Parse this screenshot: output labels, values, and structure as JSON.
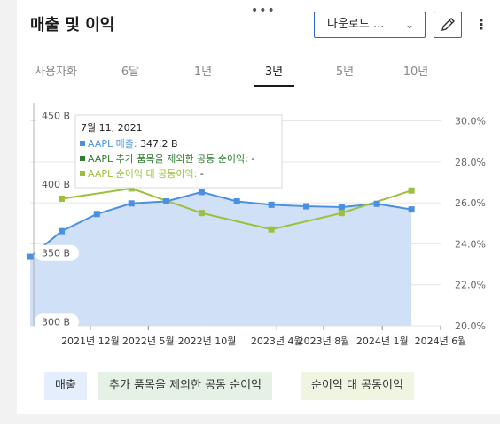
{
  "header": {
    "title": "매출 및 이익",
    "drag_handle": "•••",
    "download_label": "다운로드 ...",
    "chevron": "⌄",
    "more_label": "⋮"
  },
  "tabs": [
    {
      "label": "사용자화",
      "active": false
    },
    {
      "label": "6달",
      "active": false
    },
    {
      "label": "1년",
      "active": false
    },
    {
      "label": "3년",
      "active": true
    },
    {
      "label": "5년",
      "active": false
    },
    {
      "label": "10년",
      "active": false
    }
  ],
  "tooltip": {
    "date": "7월 11, 2021",
    "rows": [
      {
        "label": "AAPL 매출:",
        "value": "347.2 B",
        "color": "#4a90e2"
      },
      {
        "label": "AAPL 추가 품목을 제외한 공동 순이익:",
        "value": "-",
        "color": "#2e7d32"
      },
      {
        "label": "AAPL 순이익 대 공동이익:",
        "value": "-",
        "color": "#9dbf3a"
      }
    ]
  },
  "chart_data": {
    "type": "line",
    "x": [
      "2021-07-11",
      "2021-10-01",
      "2022-01-01",
      "2022-04-01",
      "2022-07-01",
      "2022-10-01",
      "2023-01-01",
      "2023-04-01",
      "2023-07-01",
      "2023-10-01",
      "2024-01-01",
      "2024-03-31"
    ],
    "x_tick_labels": [
      "2021년 12월",
      "2022년 5월",
      "2022년 10월",
      "2023년 4월",
      "2023년 8월",
      "2024년 1월",
      "2024년 6월"
    ],
    "y_left": {
      "ticks": [
        "300 B",
        "350 B",
        "400 B",
        "450 B"
      ],
      "range": [
        297,
        458
      ]
    },
    "y_right": {
      "ticks": [
        "20.0%",
        "22.0%",
        "24.0%",
        "26.0%",
        "28.0%",
        "30.0%"
      ],
      "range": [
        20.0,
        30.8
      ]
    },
    "series": [
      {
        "name": "매출",
        "axis": "left",
        "color": "#4a90e2",
        "fill": "#cfe0f7",
        "x": [
          "2021-07-11",
          "2021-10-01",
          "2022-01-01",
          "2022-04-01",
          "2022-07-01",
          "2022-10-01",
          "2023-01-01",
          "2023-04-01",
          "2023-07-01",
          "2023-10-01",
          "2024-01-01",
          "2024-03-31"
        ],
        "values": [
          347.2,
          365.8,
          378.3,
          386.0,
          387.5,
          394.3,
          387.5,
          385.0,
          383.9,
          383.3,
          385.7,
          381.6
        ]
      },
      {
        "name": "추가 품목을 제외한 공동 순이익",
        "axis": "right",
        "color": "#2e7d32",
        "x": [],
        "values": []
      },
      {
        "name": "순이익 대 공동이익",
        "axis": "right",
        "color": "#9dbf3a",
        "x": [
          "2021-10-01",
          "2022-04-01",
          "2022-10-01",
          "2023-04-01",
          "2023-10-01",
          "2024-03-31"
        ],
        "values": [
          26.2,
          26.7,
          25.5,
          24.7,
          25.5,
          26.6
        ]
      }
    ],
    "grid": true,
    "legend_position": "bottom"
  },
  "legend": [
    {
      "label": "매출",
      "bg": "#e4eefc"
    },
    {
      "label": "추가 품목을 제외한 공동 순이익",
      "bg": "#e4f1e4"
    },
    {
      "label": "순이익 대 공동이익",
      "bg": "#f0f5e2"
    }
  ]
}
